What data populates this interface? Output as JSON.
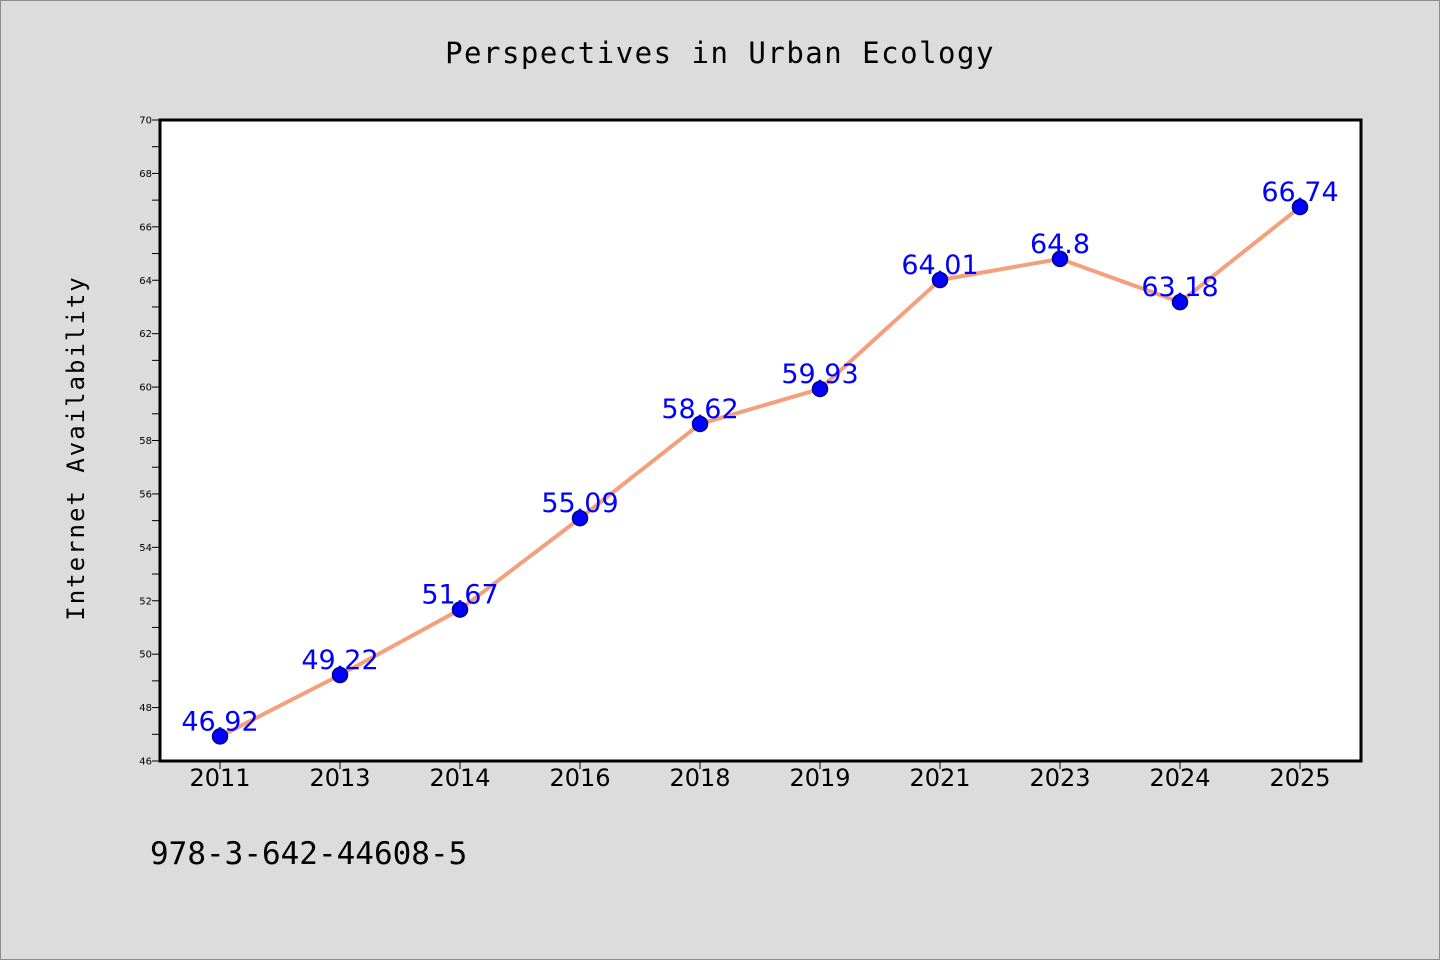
{
  "colors": {
    "background": "#dcdcdc",
    "plot_background": "#ffffff",
    "line": "#f4a07c",
    "marker_fill": "#0000ff",
    "marker_stroke": "#000080",
    "data_label": "#0000ff"
  },
  "footnote": "978-3-642-44608-5",
  "chart_data": {
    "type": "line",
    "title": "Perspectives in Urban Ecology",
    "xlabel": "",
    "ylabel": "Internet Availability",
    "categories": [
      "2011",
      "2013",
      "2014",
      "2016",
      "2018",
      "2019",
      "2021",
      "2023",
      "2024",
      "2025"
    ],
    "series": [
      {
        "values": [
          46.92,
          49.22,
          51.67,
          55.09,
          58.62,
          59.93,
          64.01,
          64.8,
          63.18,
          66.74
        ],
        "labels": [
          "46.92",
          "49.22",
          "51.67",
          "55.09",
          "58.62",
          "59.93",
          "64.01",
          "64.8",
          "63.18",
          "66.74"
        ]
      }
    ],
    "ylim": [
      46,
      70
    ],
    "yticks": [
      46,
      48,
      50,
      52,
      54,
      56,
      58,
      60,
      62,
      64,
      66,
      68,
      70
    ],
    "grid": false,
    "legend": "none"
  }
}
